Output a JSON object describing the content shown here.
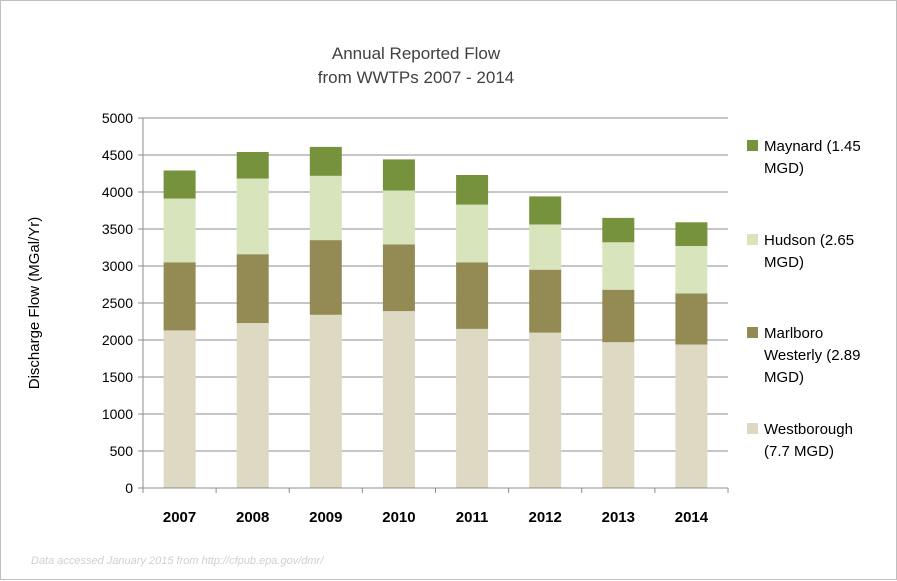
{
  "chart_data": {
    "type": "bar",
    "stacked": true,
    "title_lines": [
      "Annual Reported Flow",
      "from WWTPs 2007 - 2014"
    ],
    "ylabel": "Discharge Flow (MGal/Yr)",
    "xlabel": "",
    "ylim": [
      0,
      5000
    ],
    "yticks": [
      0,
      500,
      1000,
      1500,
      2000,
      2500,
      3000,
      3500,
      4000,
      4500,
      5000
    ],
    "grid": true,
    "legend_position": "right",
    "categories": [
      "2007",
      "2008",
      "2009",
      "2010",
      "2011",
      "2012",
      "2013",
      "2014"
    ],
    "series": [
      {
        "name_lines": [
          "Westborough",
          "(7.7 MGD)"
        ],
        "color": "#ddd9c3",
        "values": [
          2130,
          2230,
          2340,
          2390,
          2150,
          2100,
          1970,
          1940
        ]
      },
      {
        "name_lines": [
          "Marlboro",
          "Westerly (2.89",
          "MGD)"
        ],
        "color": "#948a54",
        "values": [
          920,
          930,
          1010,
          900,
          900,
          850,
          710,
          690
        ]
      },
      {
        "name_lines": [
          "Hudson (2.65",
          "MGD)"
        ],
        "color": "#d8e4bc",
        "values": [
          860,
          1020,
          870,
          730,
          780,
          610,
          640,
          640
        ]
      },
      {
        "name_lines": [
          "Maynard (1.45",
          "MGD)"
        ],
        "color": "#76923c",
        "values": [
          380,
          360,
          390,
          420,
          400,
          380,
          330,
          320
        ]
      }
    ],
    "footnote": "Data accessed January 2015  from http://cfpub.epa.gov/dmr/"
  }
}
